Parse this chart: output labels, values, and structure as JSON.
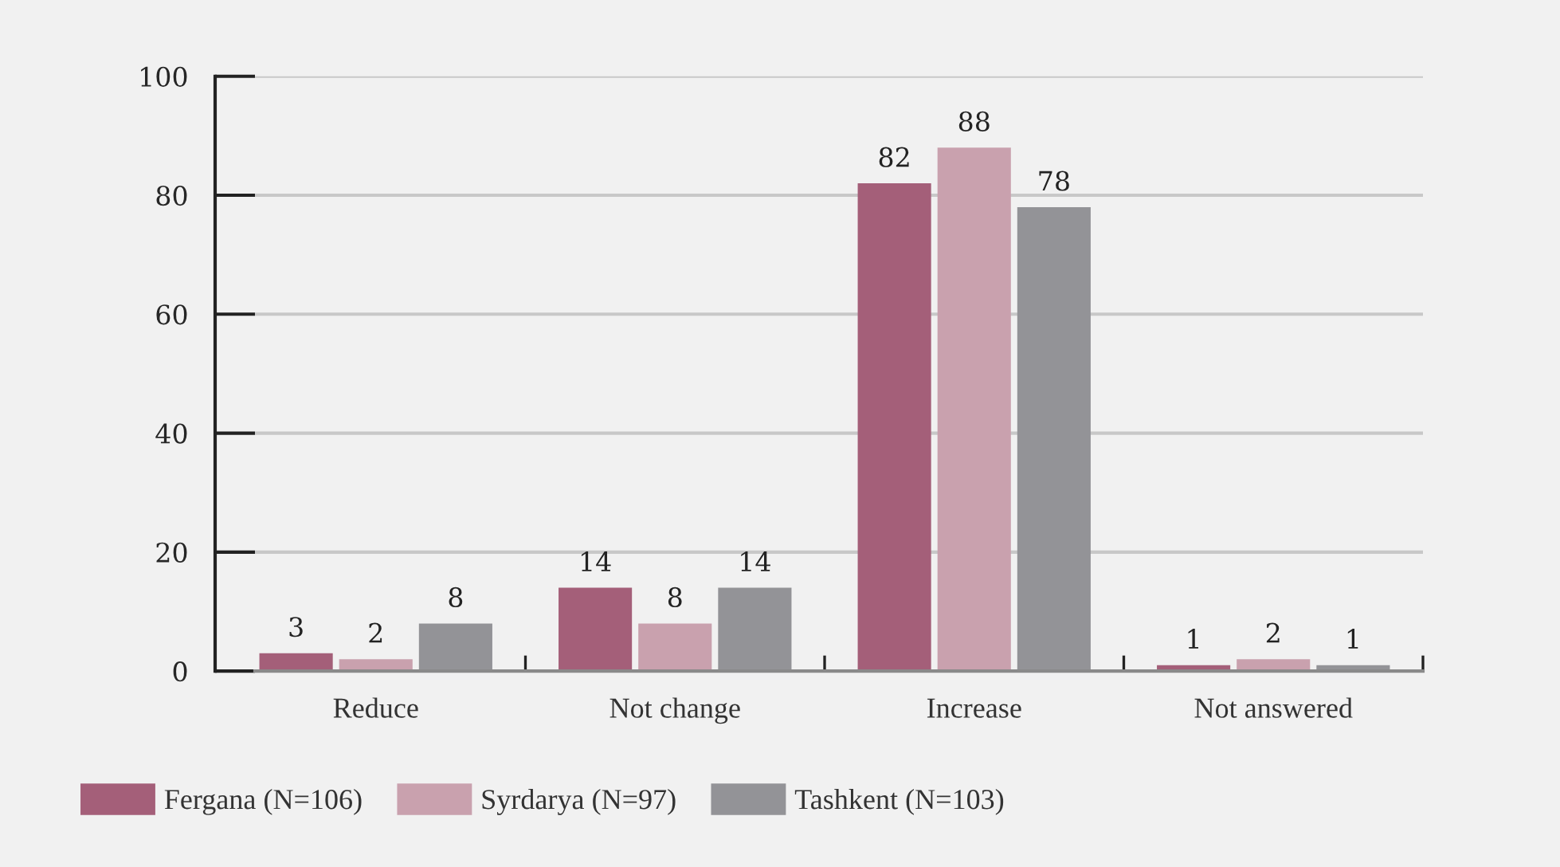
{
  "chart_data": {
    "type": "bar",
    "categories": [
      "Reduce",
      "Not change",
      "Increase",
      "Not answered"
    ],
    "series": [
      {
        "name": "Fergana (N=106)",
        "color": "#a45f79",
        "values": [
          3,
          14,
          82,
          1
        ]
      },
      {
        "name": "Syrdarya (N=97)",
        "color": "#c9a1ae",
        "values": [
          2,
          8,
          88,
          2
        ]
      },
      {
        "name": "Tashkent (N=103)",
        "color": "#939397",
        "values": [
          8,
          14,
          78,
          1
        ]
      }
    ],
    "ylim": [
      0,
      100
    ],
    "yticks": [
      0,
      20,
      40,
      60,
      80,
      100
    ],
    "grid": "y",
    "legend": "bottom left",
    "data_labels": true
  }
}
